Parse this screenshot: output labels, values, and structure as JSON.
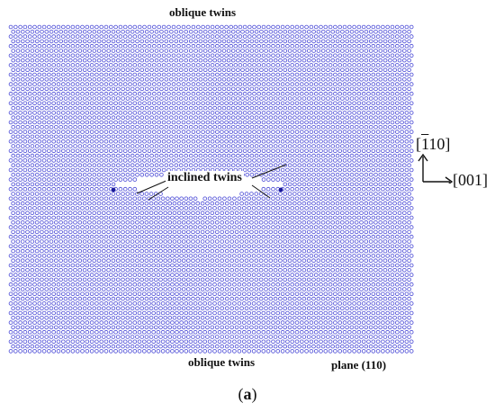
{
  "labels": {
    "top": "oblique twins",
    "bottom": "oblique twins",
    "center": "inclined twins",
    "plane": "plane (110)"
  },
  "caption": {
    "open": "(",
    "letter": "a",
    "close": ")"
  },
  "axes": {
    "vertical_prefix": "[",
    "vertical_barred": "1",
    "vertical_suffix": "10]",
    "horizontal": "[001]"
  },
  "colors": {
    "atom": "#4a4ad6",
    "defect_atom": "#1a1a9a",
    "label_text": "#111111"
  }
}
